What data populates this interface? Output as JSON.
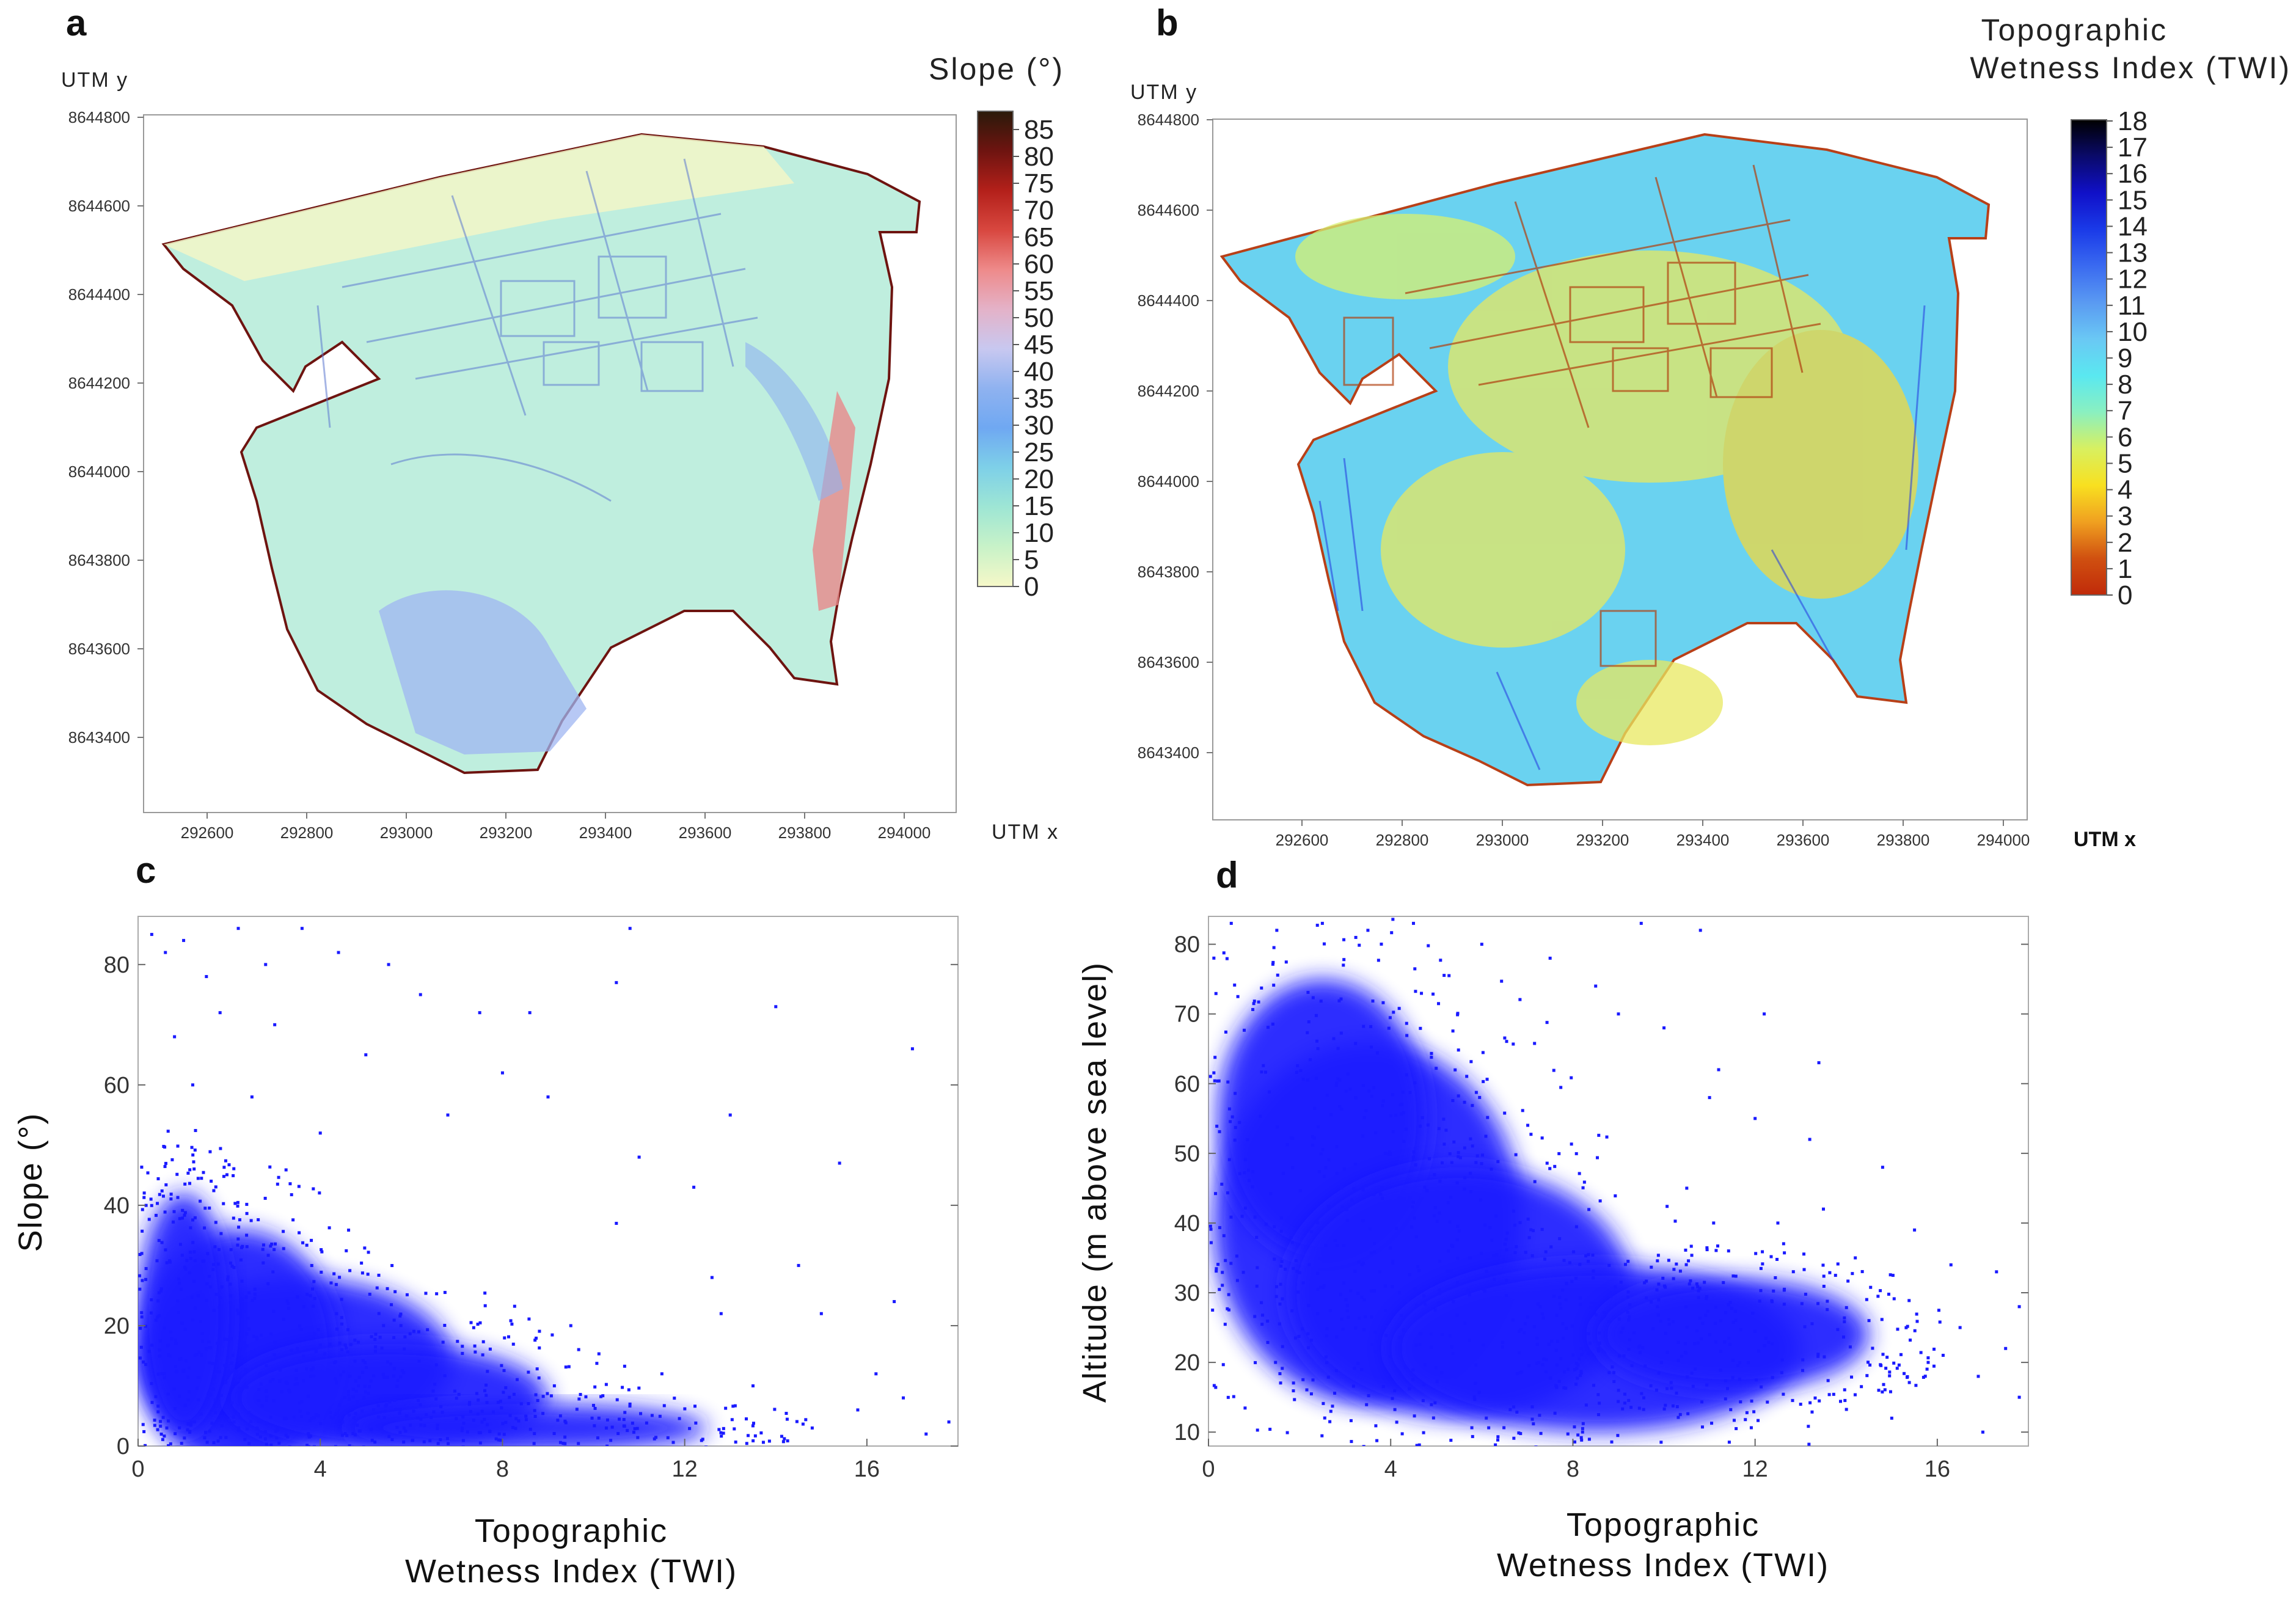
{
  "panels": {
    "a": {
      "letter": "a",
      "y_axis_label": "UTM y",
      "x_axis_label": "UTM x",
      "colorbar_title": "Slope (°)",
      "x_ticks": [
        "292600",
        "292800",
        "293000",
        "293200",
        "293400",
        "293600",
        "293800",
        "294000"
      ],
      "y_ticks": [
        "8644800",
        "8644600",
        "8644400",
        "8644200",
        "8644000",
        "8643800",
        "8643600",
        "8643400"
      ],
      "colorbar_ticks": [
        "85",
        "80",
        "75",
        "70",
        "65",
        "60",
        "55",
        "50",
        "45",
        "40",
        "35",
        "30",
        "25",
        "20",
        "15",
        "10",
        "5",
        "0"
      ],
      "colorbar_stops": [
        "#2a1a0a",
        "#6e1410",
        "#b3201a",
        "#d8473f",
        "#ee8a8a",
        "#e4b2c8",
        "#c8c8f0",
        "#8fb2f0",
        "#6fa8f2",
        "#7ed0e8",
        "#9ee6d4",
        "#c8f2c8",
        "#f6f8c8"
      ]
    },
    "b": {
      "letter": "b",
      "y_axis_label": "UTM y",
      "x_axis_label": "UTM x",
      "colorbar_title_line1": "Topographic",
      "colorbar_title_line2": "Wetness Index (TWI)",
      "x_ticks": [
        "292600",
        "292800",
        "293000",
        "293200",
        "293400",
        "293600",
        "293800",
        "294000"
      ],
      "y_ticks": [
        "8644800",
        "8644600",
        "8644400",
        "8644200",
        "8644000",
        "8643800",
        "8643600",
        "8643400"
      ],
      "colorbar_ticks": [
        "18",
        "17",
        "16",
        "15",
        "14",
        "13",
        "12",
        "11",
        "10",
        "9",
        "8",
        "7",
        "6",
        "5",
        "4",
        "3",
        "2",
        "1",
        "0"
      ],
      "colorbar_stops": [
        "#000000",
        "#0a0a6a",
        "#1010c8",
        "#1a3ae8",
        "#3a6af0",
        "#5a9af2",
        "#6ac8f4",
        "#5ae8f0",
        "#8af0c0",
        "#d8f060",
        "#f8e020",
        "#f0a020",
        "#d05010",
        "#c02a0a"
      ]
    }
  },
  "chart_data": [
    {
      "panel": "c",
      "type": "scatter",
      "title": "",
      "xlabel_line1": "Topographic",
      "xlabel_line2": "Wetness Index (TWI)",
      "ylabel": "Slope (°)",
      "xlim": [
        0,
        18
      ],
      "ylim": [
        0,
        88
      ],
      "x_ticks": [
        "0",
        "4",
        "8",
        "12",
        "16"
      ],
      "y_ticks": [
        "0",
        "20",
        "40",
        "60",
        "80"
      ],
      "color": "#1a1aff",
      "points": [
        [
          0.3,
          85
        ],
        [
          0.6,
          82
        ],
        [
          1.0,
          84
        ],
        [
          1.5,
          78
        ],
        [
          2.2,
          86
        ],
        [
          2.8,
          80
        ],
        [
          3.6,
          86
        ],
        [
          4.4,
          82
        ],
        [
          5.5,
          80
        ],
        [
          6.2,
          75
        ],
        [
          7.5,
          72
        ],
        [
          8.6,
          72
        ],
        [
          10.8,
          86
        ],
        [
          10.5,
          77
        ],
        [
          13.0,
          55
        ],
        [
          14.0,
          73
        ],
        [
          17.0,
          66
        ],
        [
          15.4,
          47
        ],
        [
          14.5,
          30
        ],
        [
          12.8,
          22
        ],
        [
          16.6,
          24
        ],
        [
          16.2,
          12
        ],
        [
          17.8,
          4
        ],
        [
          13.5,
          10
        ],
        [
          11.5,
          12
        ],
        [
          9.5,
          20
        ],
        [
          10.5,
          37
        ],
        [
          12.2,
          43
        ],
        [
          11.0,
          48
        ],
        [
          8.0,
          62
        ],
        [
          6.8,
          55
        ],
        [
          5.0,
          65
        ],
        [
          3.0,
          70
        ],
        [
          1.8,
          72
        ],
        [
          0.8,
          68
        ],
        [
          1.2,
          60
        ],
        [
          2.5,
          58
        ],
        [
          4.0,
          52
        ],
        [
          9.0,
          58
        ],
        [
          12.6,
          28
        ],
        [
          15.0,
          22
        ],
        [
          15.8,
          6
        ],
        [
          14.8,
          3
        ],
        [
          17.3,
          2
        ],
        [
          16.8,
          8
        ]
      ],
      "density_blobs": [
        {
          "cx": 3.5,
          "cy": 14,
          "rx": 3.4,
          "ry": 14
        },
        {
          "cx": 2.2,
          "cy": 16,
          "rx": 2.2,
          "ry": 20
        },
        {
          "cx": 5.5,
          "cy": 8,
          "rx": 3.5,
          "ry": 9
        },
        {
          "cx": 8.5,
          "cy": 3,
          "rx": 4.0,
          "ry": 4
        },
        {
          "cx": 1.0,
          "cy": 22,
          "rx": 1.0,
          "ry": 20
        }
      ]
    },
    {
      "panel": "d",
      "type": "scatter",
      "title": "",
      "xlabel_line1": "Topographic",
      "xlabel_line2": "Wetness Index (TWI)",
      "ylabel": "Altitude (m above sea level)",
      "xlim": [
        0,
        18
      ],
      "ylim": [
        8,
        84
      ],
      "x_ticks": [
        "0",
        "4",
        "8",
        "12",
        "16"
      ],
      "y_ticks": [
        "10",
        "20",
        "30",
        "40",
        "50",
        "60",
        "70",
        "80"
      ],
      "color": "#1a1aff",
      "points": [
        [
          0.5,
          83
        ],
        [
          1.5,
          82
        ],
        [
          2.5,
          83
        ],
        [
          3.5,
          82
        ],
        [
          4.5,
          83
        ],
        [
          6.0,
          80
        ],
        [
          7.5,
          78
        ],
        [
          9.5,
          83
        ],
        [
          10.8,
          82
        ],
        [
          9.0,
          70
        ],
        [
          8.5,
          74
        ],
        [
          10.0,
          68
        ],
        [
          11.2,
          62
        ],
        [
          12.2,
          70
        ],
        [
          13.4,
          63
        ],
        [
          13.2,
          52
        ],
        [
          12.0,
          55
        ],
        [
          11.0,
          58
        ],
        [
          14.8,
          48
        ],
        [
          15.5,
          39
        ],
        [
          14.2,
          35
        ],
        [
          16.3,
          34
        ],
        [
          17.3,
          33
        ],
        [
          17.8,
          28
        ],
        [
          16.5,
          25
        ],
        [
          17.5,
          22
        ],
        [
          17.8,
          15
        ],
        [
          16.9,
          18
        ],
        [
          15.8,
          20
        ],
        [
          14.5,
          26
        ],
        [
          13.5,
          42
        ],
        [
          12.5,
          40
        ],
        [
          10.5,
          45
        ],
        [
          17.0,
          10
        ],
        [
          15.0,
          12
        ],
        [
          13.0,
          14
        ]
      ],
      "density_blobs": [
        {
          "cx": 3.5,
          "cy": 40,
          "rx": 3.4,
          "ry": 26
        },
        {
          "cx": 2.5,
          "cy": 55,
          "rx": 2.3,
          "ry": 20
        },
        {
          "cx": 5.5,
          "cy": 30,
          "rx": 3.8,
          "ry": 18
        },
        {
          "cx": 8.5,
          "cy": 22,
          "rx": 4.5,
          "ry": 12
        },
        {
          "cx": 11.5,
          "cy": 24,
          "rx": 3.0,
          "ry": 8
        }
      ]
    }
  ]
}
